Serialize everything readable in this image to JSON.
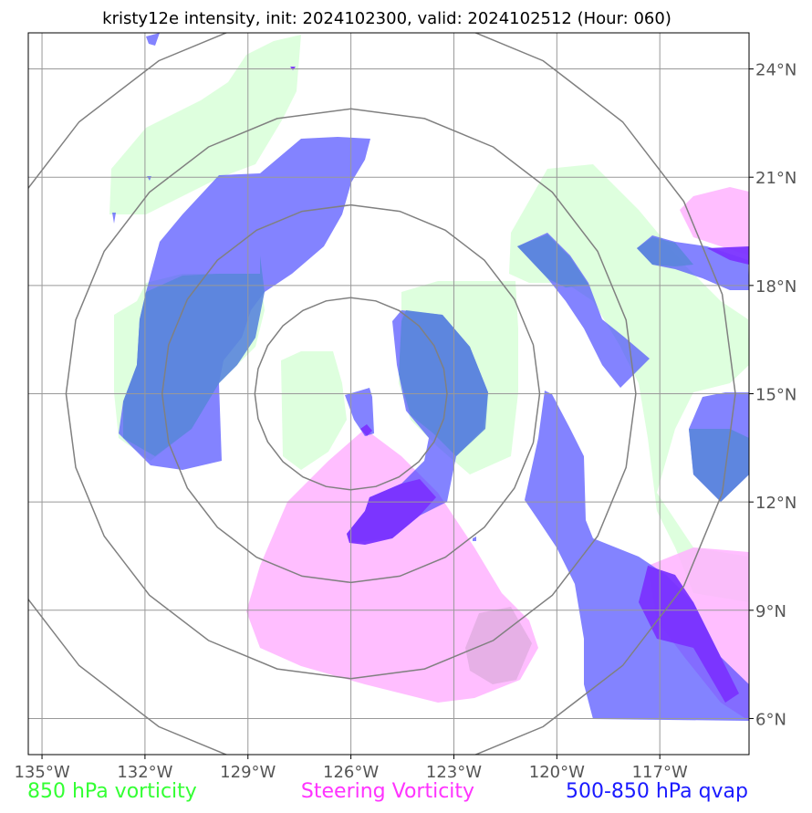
{
  "title": "kristy12e intensity, init: 2024102300, valid: 2024102512 (Hour: 060)",
  "map": {
    "lon_range": [
      -135.4,
      -114.4
    ],
    "lat_range": [
      5.0,
      25.0
    ],
    "lon_ticks": [
      {
        "value": -135,
        "label": "135°W"
      },
      {
        "value": -132,
        "label": "132°W"
      },
      {
        "value": -129,
        "label": "129°W"
      },
      {
        "value": -126,
        "label": "126°W"
      },
      {
        "value": -123,
        "label": "123°W"
      },
      {
        "value": -120,
        "label": "120°W"
      },
      {
        "value": -117,
        "label": "117°W"
      }
    ],
    "lat_ticks": [
      {
        "value": 24,
        "label": "24°N"
      },
      {
        "value": 21,
        "label": "21°N"
      },
      {
        "value": 18,
        "label": "18°N"
      },
      {
        "value": 15,
        "label": "15°N"
      },
      {
        "value": 12,
        "label": "12°N"
      },
      {
        "value": 9,
        "label": "9°N"
      },
      {
        "value": 6,
        "label": "6°N"
      }
    ],
    "storm_center": {
      "lon": -126.0,
      "lat": 15.0
    },
    "range_rings_deg": [
      2.8,
      5.5,
      8.3,
      11.2
    ]
  },
  "legend": [
    {
      "label": "850 hPa vorticity",
      "color": "#33ff33"
    },
    {
      "label": "Steering Vorticity",
      "color": "#ff33ff"
    },
    {
      "label": "500-850 hPa qvap",
      "color": "#1a1aff"
    }
  ]
}
